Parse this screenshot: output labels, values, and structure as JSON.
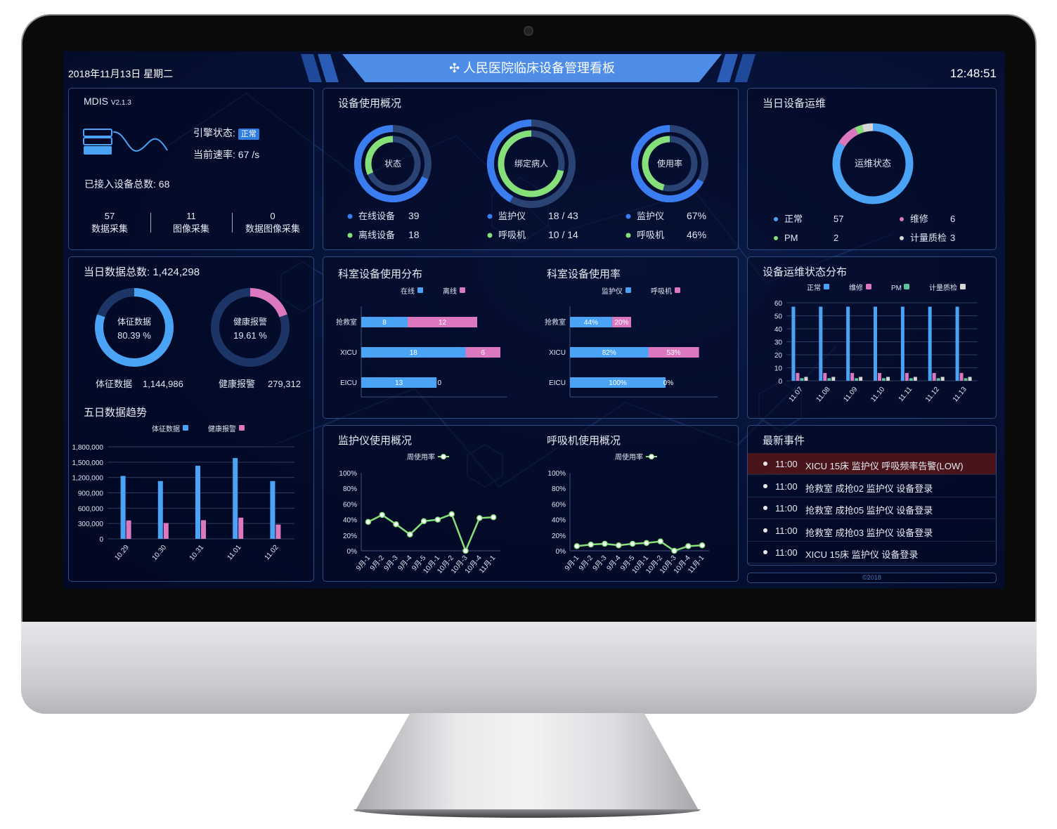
{
  "header": {
    "date": "2018年11月13日 星期二",
    "title": "人民医院临床设备管理看板",
    "time": "12:48:51"
  },
  "engine": {
    "name": "MDIS",
    "version": "V2.1.3",
    "status_label": "引擎状态:",
    "status": "正常",
    "rate_label": "当前速率:",
    "rate": "67 /s",
    "total_label": "已接入设备总数:",
    "total": "68",
    "stats": [
      {
        "value": "57",
        "label": "数据采集"
      },
      {
        "value": "11",
        "label": "图像采集"
      },
      {
        "value": "0",
        "label": "数据图像采集"
      }
    ]
  },
  "usage": {
    "title": "设备使用概况",
    "donuts": [
      {
        "center": "状态",
        "outer_fraction": 0.684,
        "inner_fraction": 0.316,
        "rows": [
          {
            "label": "在线设备",
            "value": "39"
          },
          {
            "label": "离线设备",
            "value": "18"
          }
        ]
      },
      {
        "center": "绑定病人",
        "outer_fraction": 0.419,
        "inner_fraction": 0.714,
        "rows": [
          {
            "label": "监护仪",
            "value": "18 / 43"
          },
          {
            "label": "呼吸机",
            "value": "10 / 14"
          }
        ]
      },
      {
        "center": "使用率",
        "outer_fraction": 0.67,
        "inner_fraction": 0.46,
        "rows": [
          {
            "label": "监护仪",
            "value": "67%"
          },
          {
            "label": "呼吸机",
            "value": "46%"
          }
        ]
      }
    ]
  },
  "maintenance": {
    "title": "当日设备运维",
    "center": "运维状态",
    "segments": [
      {
        "label": "正常",
        "value": "57",
        "color": "#4aa3f5"
      },
      {
        "label": "维修",
        "value": "6",
        "color": "#dc78c0"
      },
      {
        "label": "PM",
        "value": "2",
        "color": "#86e07a"
      },
      {
        "label": "计量质检",
        "value": "3",
        "color": "#d6d6d6"
      }
    ]
  },
  "daily": {
    "title": "当日数据总数:",
    "total": "1,424,298",
    "donuts": [
      {
        "label": "体征数据",
        "percent": "80.39 %",
        "fraction": 0.8039,
        "color": "#4aa3f5",
        "footer_label": "体征数据",
        "footer_value": "1,144,986"
      },
      {
        "label": "健康报警",
        "percent": "19.61 %",
        "fraction": 0.1961,
        "color": "#dc78c0",
        "footer_label": "健康报警",
        "footer_value": "279,312"
      }
    ]
  },
  "colors": {
    "blue": "#4aa3f5",
    "ring_blue": "#3a7df0",
    "green": "#86e07a",
    "pink": "#dc78c0",
    "gray": "#d6d6d6",
    "teal": "#5ec0a0",
    "track": "#1d3566"
  },
  "events": {
    "title": "最新事件",
    "items": [
      {
        "time": "11:00",
        "text": "XICU 15床 监护仪 呼吸频率告警(LOW)",
        "alert": true
      },
      {
        "time": "11:00",
        "text": "抢救室 成抢02 监护仪 设备登录",
        "alert": false
      },
      {
        "time": "11:00",
        "text": "抢救室 成抢05 监护仪 设备登录",
        "alert": false
      },
      {
        "time": "11:00",
        "text": "抢救室 成抢03 监护仪 设备登录",
        "alert": false
      },
      {
        "time": "11:00",
        "text": "XICU 15床 监护仪 设备登录",
        "alert": false
      }
    ]
  },
  "footer": "©2018",
  "chart_data": [
    {
      "id": "trend",
      "type": "bar",
      "title": "五日数据趋势",
      "categories": [
        "10.29",
        "10.30",
        "10.31",
        "11.01",
        "11.02"
      ],
      "series": [
        {
          "name": "体征数据",
          "color": "#4aa3f5",
          "values": [
            1230000,
            1130000,
            1430000,
            1580000,
            1130000
          ]
        },
        {
          "name": "健康报警",
          "color": "#dc78c0",
          "values": [
            360000,
            310000,
            365000,
            415000,
            280000
          ]
        }
      ],
      "ylim": [
        0,
        1800000
      ],
      "y_ticks": [
        "0",
        "300,000",
        "600,000",
        "900,000",
        "1,200,000",
        "1,500,000",
        "1,800,000"
      ],
      "grid": true,
      "legend": "top"
    },
    {
      "id": "dept-dist",
      "type": "bar",
      "orientation": "horizontal",
      "stacked": true,
      "title": "科室设备使用分布",
      "categories": [
        "抢救室",
        "XICU",
        "EICU"
      ],
      "series": [
        {
          "name": "在线",
          "color": "#4aa3f5",
          "values": [
            8,
            18,
            13
          ]
        },
        {
          "name": "离线",
          "color": "#dc78c0",
          "values": [
            12,
            6,
            0
          ]
        }
      ],
      "legend": "top"
    },
    {
      "id": "dept-rate",
      "type": "bar",
      "orientation": "horizontal",
      "stacked": true,
      "title": "科室设备使用率",
      "categories": [
        "抢救室",
        "XICU",
        "EICU"
      ],
      "series": [
        {
          "name": "监护仪",
          "color": "#4aa3f5",
          "values": [
            44,
            82,
            100
          ],
          "labels": [
            "44%",
            "82%",
            "100%"
          ]
        },
        {
          "name": "呼吸机",
          "color": "#dc78c0",
          "values": [
            20,
            53,
            0
          ],
          "labels": [
            "20%",
            "53%",
            "0%"
          ]
        }
      ],
      "legend": "top"
    },
    {
      "id": "maint-dist",
      "type": "bar",
      "title": "设备运维状态分布",
      "categories": [
        "11.07",
        "11.08",
        "11.09",
        "11.10",
        "11.11",
        "11.12",
        "11.13"
      ],
      "series": [
        {
          "name": "正常",
          "color": "#4aa3f5",
          "values": [
            57,
            57,
            57,
            57,
            57,
            57,
            57
          ]
        },
        {
          "name": "维修",
          "color": "#dc78c0",
          "values": [
            6,
            6,
            6,
            6,
            6,
            6,
            6
          ]
        },
        {
          "name": "PM",
          "color": "#5ec0a0",
          "values": [
            2,
            2,
            2,
            2,
            2,
            2,
            2
          ]
        },
        {
          "name": "计量质检",
          "color": "#d6d6d6",
          "values": [
            3,
            3,
            3,
            3,
            3,
            3,
            3
          ]
        }
      ],
      "ylim": [
        0,
        60
      ],
      "y_ticks": [
        "0",
        "10",
        "20",
        "30",
        "40",
        "50",
        "60"
      ],
      "grid": true,
      "legend": "top"
    },
    {
      "id": "monitor-line",
      "type": "line",
      "title": "监护仪使用概况",
      "categories": [
        "9月-1",
        "9月-2",
        "9月-3",
        "9月-4",
        "9月-5",
        "10月-1",
        "10月-2",
        "10月-3",
        "10月-4",
        "11月-1"
      ],
      "series": [
        {
          "name": "周使用率",
          "color": "#86e07a",
          "values": [
            37,
            46,
            34,
            21,
            38,
            40,
            47,
            0,
            42,
            43
          ]
        }
      ],
      "ylim": [
        0,
        100
      ],
      "y_ticks": [
        "0%",
        "20%",
        "40%",
        "60%",
        "80%",
        "100%"
      ],
      "legend": "top"
    },
    {
      "id": "vent-line",
      "type": "line",
      "title": "呼吸机使用概况",
      "categories": [
        "9月-1",
        "9月-2",
        "9月-3",
        "9月-4",
        "9月-5",
        "10月-1",
        "10月-2",
        "10月-3",
        "10月-4",
        "11月-1"
      ],
      "series": [
        {
          "name": "周使用率",
          "color": "#86e07a",
          "values": [
            6,
            8,
            9,
            7,
            9,
            10,
            12,
            0,
            6,
            7
          ]
        }
      ],
      "ylim": [
        0,
        100
      ],
      "y_ticks": [
        "0%",
        "20%",
        "40%",
        "60%",
        "80%",
        "100%"
      ],
      "legend": "top"
    }
  ]
}
